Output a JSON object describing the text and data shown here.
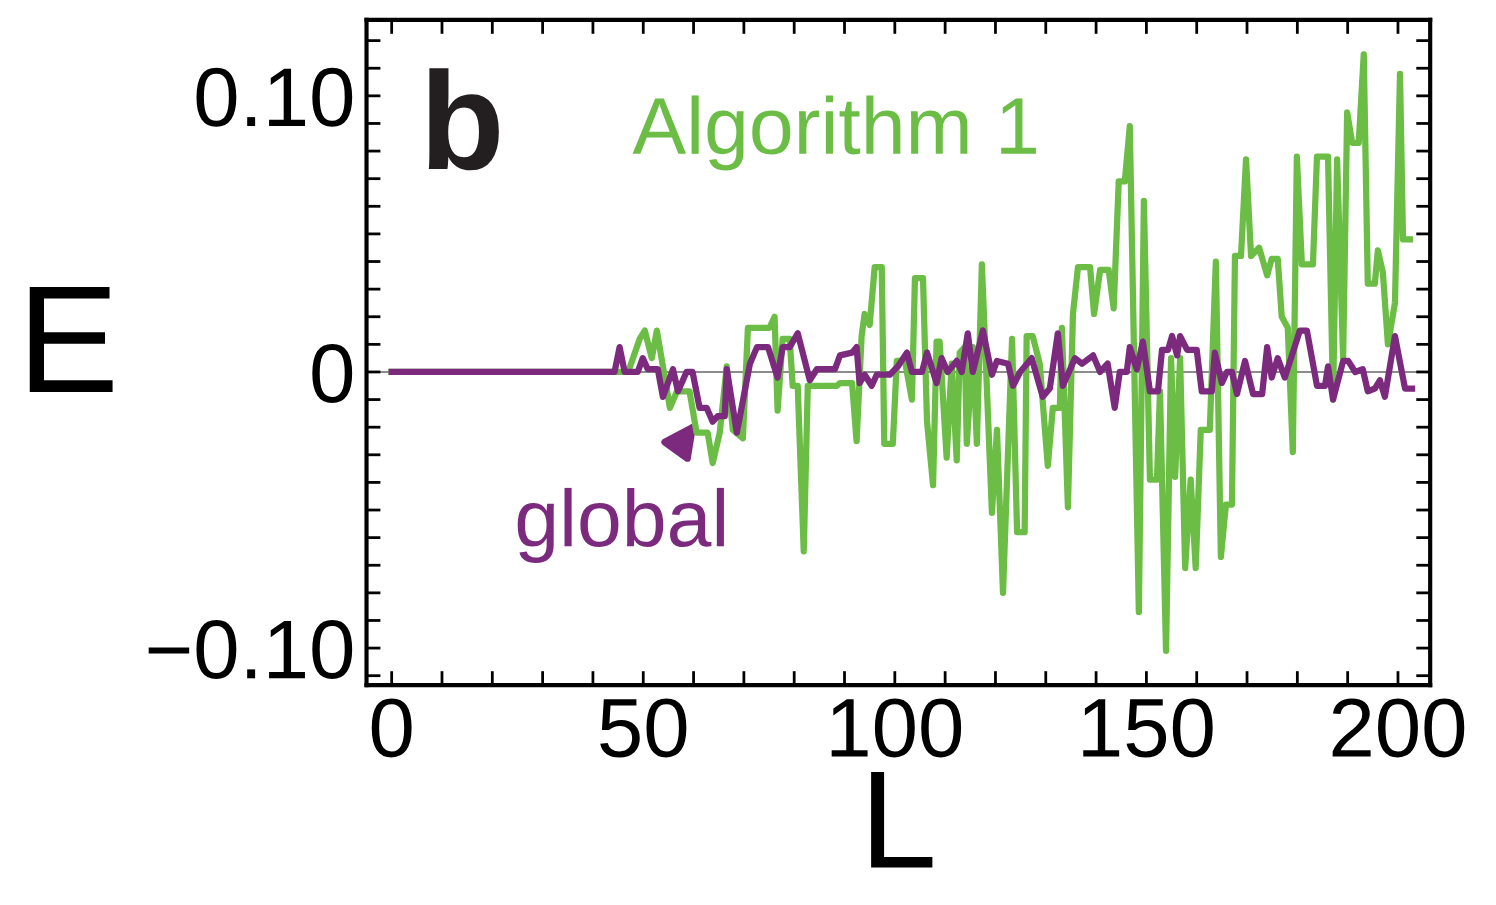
{
  "chart_data": {
    "type": "line",
    "xlabel": "L",
    "ylabel": "E",
    "annotations": [
      "b"
    ],
    "xlim": [
      -5,
      206.4
    ],
    "ylim": [
      -0.1134,
      0.1275
    ],
    "xticks": [
      0,
      {
        "value": 10,
        "label": null
      },
      {
        "value": 20,
        "label": null
      },
      {
        "value": 30,
        "label": null
      },
      {
        "value": 40,
        "label": null
      },
      50,
      {
        "value": 60,
        "label": null
      },
      {
        "value": 70,
        "label": null
      },
      {
        "value": 80,
        "label": null
      },
      {
        "value": 90,
        "label": null
      },
      100,
      {
        "value": 110,
        "label": null
      },
      {
        "value": 120,
        "label": null
      },
      {
        "value": 130,
        "label": null
      },
      {
        "value": 140,
        "label": null
      },
      150,
      {
        "value": 160,
        "label": null
      },
      {
        "value": 170,
        "label": null
      },
      {
        "value": 180,
        "label": null
      },
      {
        "value": 190,
        "label": null
      },
      200
    ],
    "yticks": [
      {
        "value": -0.11,
        "label": null
      },
      {
        "value": -0.1,
        "label": "−0.10"
      },
      {
        "value": -0.09,
        "label": null
      },
      {
        "value": -0.08,
        "label": null
      },
      {
        "value": -0.07,
        "label": null
      },
      {
        "value": -0.06,
        "label": null
      },
      {
        "value": -0.05,
        "label": null
      },
      {
        "value": -0.04,
        "label": null
      },
      {
        "value": -0.03,
        "label": null
      },
      {
        "value": -0.02,
        "label": null
      },
      {
        "value": -0.01,
        "label": null
      },
      {
        "value": 0,
        "label": "0"
      },
      {
        "value": 0.01,
        "label": null
      },
      {
        "value": 0.02,
        "label": null
      },
      {
        "value": 0.03,
        "label": null
      },
      {
        "value": 0.04,
        "label": null
      },
      {
        "value": 0.05,
        "label": null
      },
      {
        "value": 0.06,
        "label": null
      },
      {
        "value": 0.07,
        "label": null
      },
      {
        "value": 0.08,
        "label": null
      },
      {
        "value": 0.09,
        "label": null
      },
      {
        "value": 0.1,
        "label": "0.10"
      },
      {
        "value": 0.11,
        "label": null
      },
      {
        "value": 0.12,
        "label": null
      }
    ],
    "ref_lines": [
      {
        "axis": "y",
        "value": 0,
        "color": "#666666"
      }
    ],
    "line_style": "solid",
    "marker": "none",
    "series": [
      {
        "name": "Algorithm 1",
        "color": "#6bbd45",
        "x": [
          0,
          47,
          49.3,
          50.3,
          51.7,
          52.7,
          55.3,
          56.7,
          59.2,
          60.6,
          62.8,
          63.8,
          65.2,
          66.6,
          67.8,
          69.8,
          70.8,
          75.1,
          76.1,
          76.7,
          77.7,
          79.1,
          79.7,
          80.7,
          81.9,
          82.7,
          88.5,
          89.1,
          91.5,
          92.4,
          93.4,
          94.0,
          95.0,
          96.0,
          97.4,
          97.9,
          99.6,
          100.4,
          102.0,
          103.4,
          104.0,
          105.6,
          106.4,
          107.6,
          108.3,
          108.9,
          110.3,
          111.3,
          112.3,
          112.9,
          113.9,
          114.3,
          115.5,
          116.3,
          117.3,
          119.3,
          120.3,
          121.5,
          123.3,
          124.3,
          125.8,
          126.2,
          127.4,
          128.8,
          130.4,
          131.4,
          132.8,
          133.2,
          134.4,
          135.4,
          136.4,
          138.8,
          139.6,
          140.8,
          142.5,
          143.5,
          144.5,
          145.7,
          146.7,
          148.5,
          149.5,
          150.7,
          152.1,
          152.7,
          153.9,
          154.9,
          155.7,
          156.7,
          157.7,
          158.8,
          159.8,
          160.8,
          162.6,
          163.8,
          164.8,
          165.8,
          167.0,
          167.6,
          168.8,
          169.8,
          170.8,
          172.4,
          174.0,
          174.9,
          176.1,
          176.9,
          178.1,
          179.1,
          179.9,
          180.9,
          183.1,
          183.9,
          186.1,
          187.1,
          187.9,
          189.1,
          189.9,
          190.9,
          192.2,
          193.2,
          194.0,
          195.4,
          196.0,
          197.0,
          198.0,
          199.4,
          200.4,
          201.0,
          202.4
        ],
        "values": [
          0,
          0,
          0.012,
          0.015,
          0.005,
          0.015,
          -0.013,
          -0.007,
          -0.007,
          -0.022,
          -0.022,
          -0.033,
          -0.022,
          0.002,
          -0.021,
          -0.024,
          0.016,
          0.016,
          0.02,
          -0.014,
          0.012,
          0.012,
          -0.005,
          -0.005,
          -0.065,
          -0.005,
          -0.005,
          -0.004,
          -0.004,
          -0.025,
          0.013,
          0.021,
          0.017,
          0.038,
          0.038,
          -0.026,
          -0.026,
          0.004,
          0.004,
          -0.01,
          0.034,
          0.034,
          -0.018,
          -0.041,
          0.011,
          0.011,
          -0.031,
          0.003,
          -0.032,
          0.007,
          0.009,
          -0.026,
          0.009,
          -0.026,
          0.039,
          -0.051,
          -0.021,
          -0.08,
          0.012,
          -0.058,
          -0.058,
          0.013,
          0.013,
          0.003,
          -0.034,
          -0.013,
          -0.013,
          0.016,
          -0.049,
          0.021,
          0.038,
          0.038,
          0.021,
          0.037,
          0.037,
          0.023,
          0.069,
          0.069,
          0.089,
          -0.087,
          0.062,
          -0.039,
          -0.039,
          -0.007,
          -0.101,
          0.005,
          -0.038,
          0.005,
          -0.071,
          -0.039,
          -0.071,
          -0.021,
          -0.021,
          0.04,
          -0.067,
          -0.048,
          -0.048,
          0.042,
          0.042,
          0.077,
          0.042,
          0.045,
          0.035,
          0.041,
          0.041,
          0.02,
          0.016,
          -0.029,
          0.078,
          0.039,
          0.039,
          0.078,
          0.078,
          -0.01,
          0.077,
          0.005,
          0.094,
          0.083,
          0.083,
          0.115,
          0.032,
          0.032,
          0.044,
          0.036,
          0.01,
          0.025,
          0.108,
          0.048,
          0.048
        ]
      },
      {
        "name": "global",
        "color": "#7b2a7e",
        "x": [
          0,
          44.3,
          45.3,
          46.3,
          48.9,
          49.9,
          50.9,
          52.9,
          53.9,
          55.9,
          56.9,
          58.6,
          59.8,
          61.2,
          62.6,
          63.8,
          64.8,
          66.2,
          66.6,
          68.6,
          71.2,
          72.6,
          74.8,
          76.7,
          77.7,
          79.1,
          80.7,
          83.1,
          84.5,
          88.1,
          89.1,
          91.5,
          92.4,
          93.0,
          94.0,
          95.4,
          96.4,
          99.0,
          100.6,
          102.4,
          103.4,
          105.4,
          106.4,
          108.3,
          109.3,
          110.5,
          112.3,
          113.3,
          114.5,
          115.5,
          117.5,
          119.3,
          120.3,
          122.5,
          123.5,
          124.9,
          127.2,
          129.4,
          130.8,
          132.4,
          133.4,
          135.8,
          137.2,
          139.4,
          140.8,
          142.3,
          143.7,
          144.7,
          146.1,
          146.7,
          148.1,
          149.3,
          150.7,
          152.3,
          153.1,
          154.3,
          155.1,
          156.1,
          156.7,
          158.1,
          160.0,
          161.0,
          163.0,
          163.6,
          165.0,
          166.0,
          167.0,
          168.0,
          169.6,
          171.2,
          173.0,
          174.0,
          174.9,
          176.1,
          177.5,
          179.1,
          180.5,
          181.9,
          183.9,
          185.5,
          186.1,
          187.1,
          189.1,
          190.1,
          191.5,
          193.0,
          194.0,
          195.4,
          196.4,
          197.4,
          199.4,
          201.4,
          202.8
        ],
        "values": [
          0,
          0,
          0.009,
          0,
          0,
          0.005,
          0.001,
          0.001,
          -0.009,
          0.001,
          -0.007,
          0,
          0,
          -0.013,
          -0.013,
          -0.018,
          -0.016,
          -0.016,
          0.001,
          -0.022,
          0.003,
          0.009,
          0.009,
          -0.002,
          0.009,
          0.009,
          0.014,
          -0.003,
          0.001,
          0.001,
          0.006,
          0.007,
          0.009,
          -0.004,
          -0.001,
          -0.005,
          -0.001,
          -0.001,
          0.002,
          0.007,
          0,
          0,
          0.007,
          -0.004,
          0.005,
          0,
          0.004,
          0,
          0.014,
          0,
          0.015,
          -0.001,
          0.004,
          0.003,
          -0.005,
          0,
          0.005,
          -0.009,
          -0.006,
          0.014,
          -0.005,
          0.005,
          0.003,
          0.006,
          0,
          0.003,
          -0.013,
          0,
          0,
          0.009,
          0.001,
          0.011,
          -0.007,
          -0.007,
          0.008,
          0.008,
          0.013,
          0.006,
          0.013,
          0.008,
          0.008,
          -0.007,
          -0.007,
          0.007,
          -0.004,
          0,
          0,
          -0.008,
          0.004,
          -0.008,
          -0.008,
          0.009,
          -0.002,
          0.005,
          -0.002,
          0.007,
          0.015,
          0.015,
          -0.005,
          -0.005,
          0.002,
          -0.01,
          0.004,
          0.004,
          0,
          0.001,
          -0.007,
          -0.006,
          -0.003,
          -0.009,
          0.013,
          -0.006,
          -0.006
        ]
      }
    ]
  }
}
